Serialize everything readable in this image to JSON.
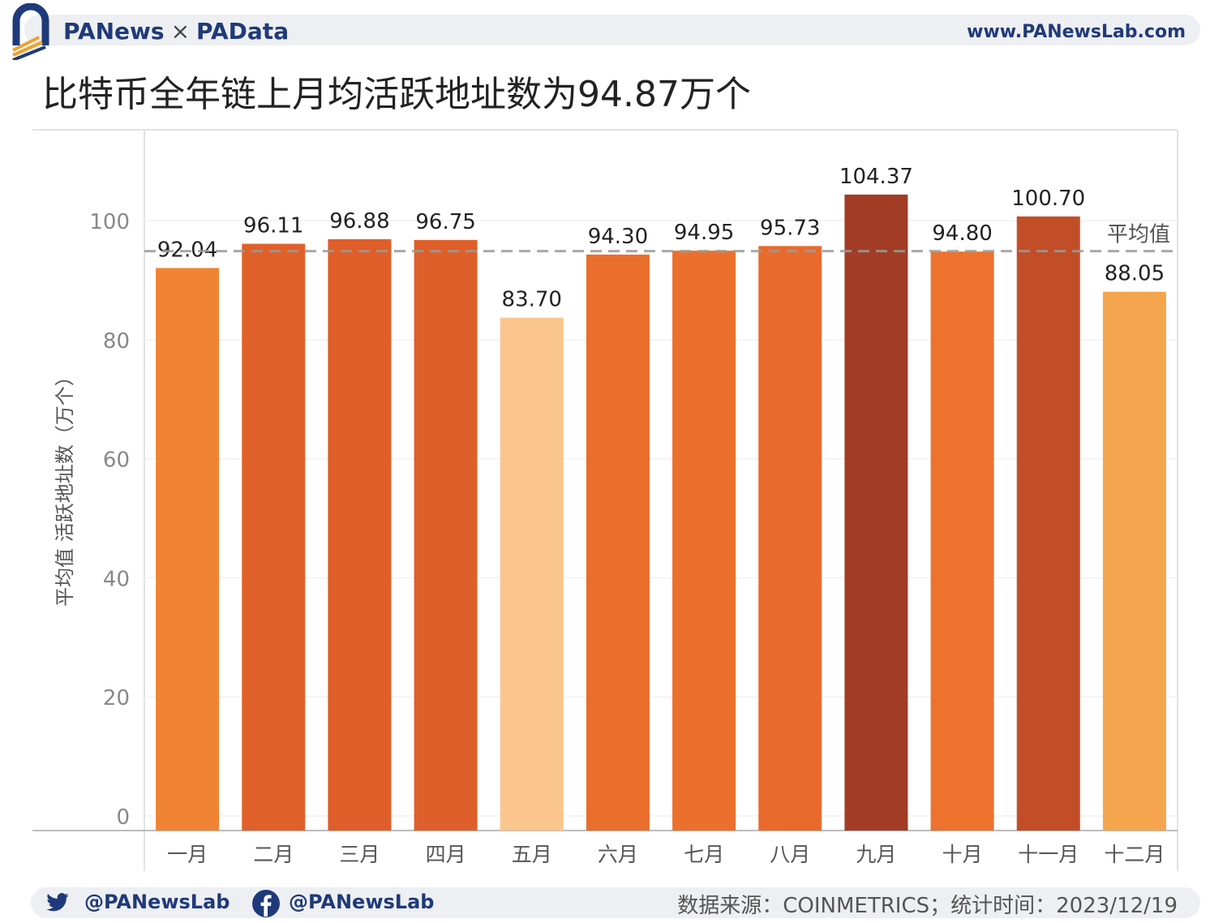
{
  "header": {
    "brand_left": "PANews",
    "brand_cross": "×",
    "brand_right": "PAData",
    "site": "www.PANewsLab.com"
  },
  "colors": {
    "brand_blue": "#1f3a7a",
    "avg_line": "#9a9a9a"
  },
  "chart_data": {
    "type": "bar",
    "title": "比特币全年链上月均活跃地址数为94.87万个",
    "ylabel": "平均值 活跃地址数（万个）",
    "xlabel": "",
    "ylim": [
      0,
      115
    ],
    "yticks": [
      0,
      20,
      40,
      60,
      80,
      100
    ],
    "categories": [
      "一月",
      "二月",
      "三月",
      "四月",
      "五月",
      "六月",
      "七月",
      "八月",
      "九月",
      "十月",
      "十一月",
      "十二月"
    ],
    "values": [
      92.04,
      96.11,
      96.88,
      96.75,
      83.7,
      94.3,
      94.95,
      95.73,
      104.37,
      94.8,
      100.7,
      88.05
    ],
    "value_labels": [
      "92.04",
      "96.11",
      "96.88",
      "96.75",
      "83.70",
      "94.30",
      "94.95",
      "95.73",
      "104.37",
      "94.80",
      "100.70",
      "88.05"
    ],
    "bar_colors": [
      "#f08434",
      "#e0602a",
      "#df5e2a",
      "#df5f2a",
      "#fbc58e",
      "#ea6e2c",
      "#eb702d",
      "#e86b2c",
      "#a23c25",
      "#ec722e",
      "#c24e27",
      "#f6a54f"
    ],
    "reference_line": {
      "value": 94.87,
      "label": "平均值"
    },
    "grid": true
  },
  "footer": {
    "twitter": "@PANewsLab",
    "facebook": "@PANewsLab",
    "source": "数据来源：COINMETRICS；统计时间：2023/12/19"
  }
}
